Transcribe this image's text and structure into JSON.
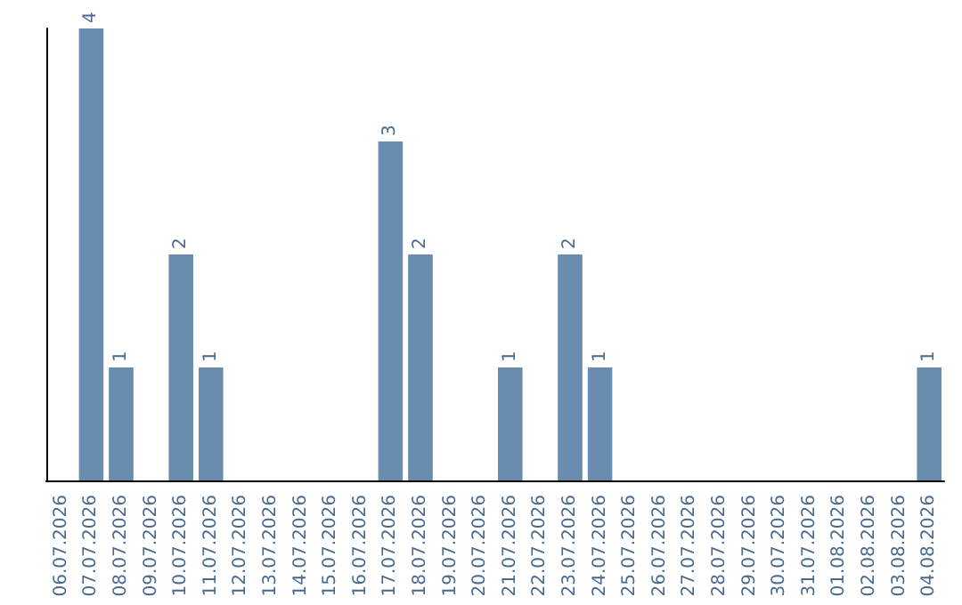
{
  "chart_data": {
    "type": "bar",
    "categories": [
      "06.07.2026",
      "07.07.2026",
      "08.07.2026",
      "09.07.2026",
      "10.07.2026",
      "11.07.2026",
      "12.07.2026",
      "13.07.2026",
      "14.07.2026",
      "15.07.2026",
      "16.07.2026",
      "17.07.2026",
      "18.07.2026",
      "19.07.2026",
      "20.07.2026",
      "21.07.2026",
      "22.07.2026",
      "23.07.2026",
      "24.07.2026",
      "25.07.2026",
      "26.07.2026",
      "27.07.2026",
      "28.07.2026",
      "29.07.2026",
      "30.07.2026",
      "31.07.2026",
      "01.08.2026",
      "02.08.2026",
      "03.08.2026",
      "04.08.2026"
    ],
    "values": [
      0,
      4,
      1,
      0,
      2,
      1,
      0,
      0,
      0,
      0,
      0,
      3,
      2,
      0,
      0,
      1,
      0,
      2,
      1,
      0,
      0,
      0,
      0,
      0,
      0,
      0,
      0,
      0,
      0,
      1
    ],
    "value_labels": [
      null,
      "4",
      "1",
      null,
      "2",
      "1",
      null,
      null,
      null,
      null,
      null,
      "3",
      "2",
      null,
      null,
      "1",
      null,
      "2",
      "1",
      null,
      null,
      null,
      null,
      null,
      null,
      null,
      null,
      null,
      null,
      "1"
    ],
    "color": "#6a8caf",
    "grid": false,
    "tick_labels": "x"
  }
}
